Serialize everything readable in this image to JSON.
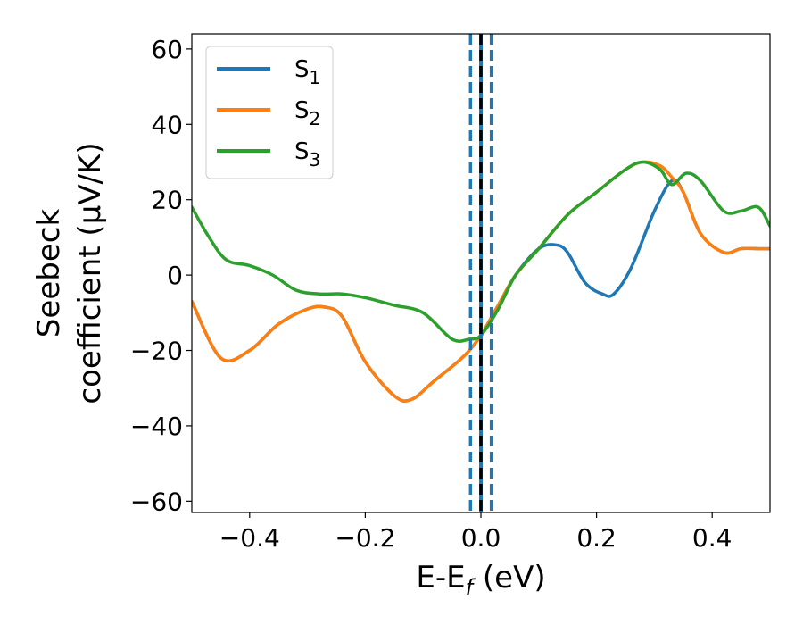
{
  "chart_data": {
    "type": "line",
    "xlabel": {
      "main": "E-E",
      "sub": "f",
      "suffix": " (eV)"
    },
    "ylabel": {
      "line1": "Seebeck",
      "line2": "coefficient  (μV/K)"
    },
    "xlim": [
      -0.5,
      0.5
    ],
    "ylim": [
      -63,
      64
    ],
    "xticks": [
      -0.4,
      -0.2,
      0.0,
      0.2,
      0.4
    ],
    "xtick_labels": [
      "−0.4",
      "−0.2",
      "0.0",
      "0.2",
      "0.4"
    ],
    "yticks": [
      -60,
      -40,
      -20,
      0,
      20,
      40,
      60
    ],
    "ytick_labels": [
      "−60",
      "−40",
      "−20",
      "0",
      "20",
      "40",
      "60"
    ],
    "grid": false,
    "legend_position": "top-left",
    "vlines": [
      {
        "x": -0.018,
        "style": "dashed",
        "color": "#1f77b4"
      },
      {
        "x": 0.018,
        "style": "dashed",
        "color": "#1f77b4"
      },
      {
        "x": 0.0,
        "style": "solid",
        "color": "#1f77b4"
      },
      {
        "x": 0.0,
        "style": "dashed",
        "color": "#000000"
      }
    ],
    "series": [
      {
        "name": "S",
        "sub": "1",
        "color": "#1f77b4",
        "x": [
          -0.5,
          -0.45,
          -0.4,
          -0.35,
          -0.3,
          -0.27,
          -0.24,
          -0.2,
          -0.15,
          -0.12,
          -0.08,
          -0.04,
          -0.02,
          0.0,
          0.03,
          0.06,
          0.1,
          0.13,
          0.15,
          0.18,
          0.21,
          0.23,
          0.26,
          0.3,
          0.33,
          0.35,
          0.38,
          0.42,
          0.45,
          0.48,
          0.5
        ],
        "values": [
          -7,
          -22,
          -20,
          -13,
          -9,
          -8.5,
          -11,
          -23,
          -32,
          -33,
          -28,
          -23,
          -20,
          -16,
          -8,
          0,
          7,
          8,
          6,
          -2,
          -5,
          -5,
          2,
          17,
          25,
          22,
          11,
          6,
          7,
          7,
          7
        ]
      },
      {
        "name": "S",
        "sub": "2",
        "color": "#ff7f0e",
        "x": [
          -0.5,
          -0.45,
          -0.4,
          -0.35,
          -0.3,
          -0.27,
          -0.24,
          -0.2,
          -0.15,
          -0.12,
          -0.08,
          -0.04,
          -0.02,
          0.0,
          0.03,
          0.06,
          0.1,
          0.15,
          0.2,
          0.25,
          0.28,
          0.31,
          0.33,
          0.35,
          0.38,
          0.42,
          0.45,
          0.48,
          0.5
        ],
        "values": [
          -7,
          -22,
          -20,
          -13,
          -9,
          -8.5,
          -11,
          -23,
          -32,
          -33,
          -28,
          -23,
          -20,
          -16,
          -8,
          0,
          7,
          16,
          22,
          28,
          30,
          29,
          26,
          22,
          11,
          6,
          7,
          7,
          7
        ]
      },
      {
        "name": "S",
        "sub": "3",
        "color": "#2ca02c",
        "x": [
          -0.5,
          -0.47,
          -0.44,
          -0.4,
          -0.36,
          -0.32,
          -0.28,
          -0.24,
          -0.2,
          -0.15,
          -0.1,
          -0.05,
          -0.02,
          0.0,
          0.03,
          0.06,
          0.1,
          0.15,
          0.2,
          0.25,
          0.28,
          0.31,
          0.33,
          0.355,
          0.38,
          0.42,
          0.45,
          0.48,
          0.5
        ],
        "values": [
          18,
          10,
          4,
          2.5,
          0,
          -4,
          -5,
          -5,
          -6,
          -8,
          -10,
          -17,
          -17,
          -16,
          -9,
          0,
          7,
          16,
          22,
          28,
          30,
          28,
          24,
          27,
          25,
          17,
          17,
          18,
          13
        ]
      }
    ]
  }
}
